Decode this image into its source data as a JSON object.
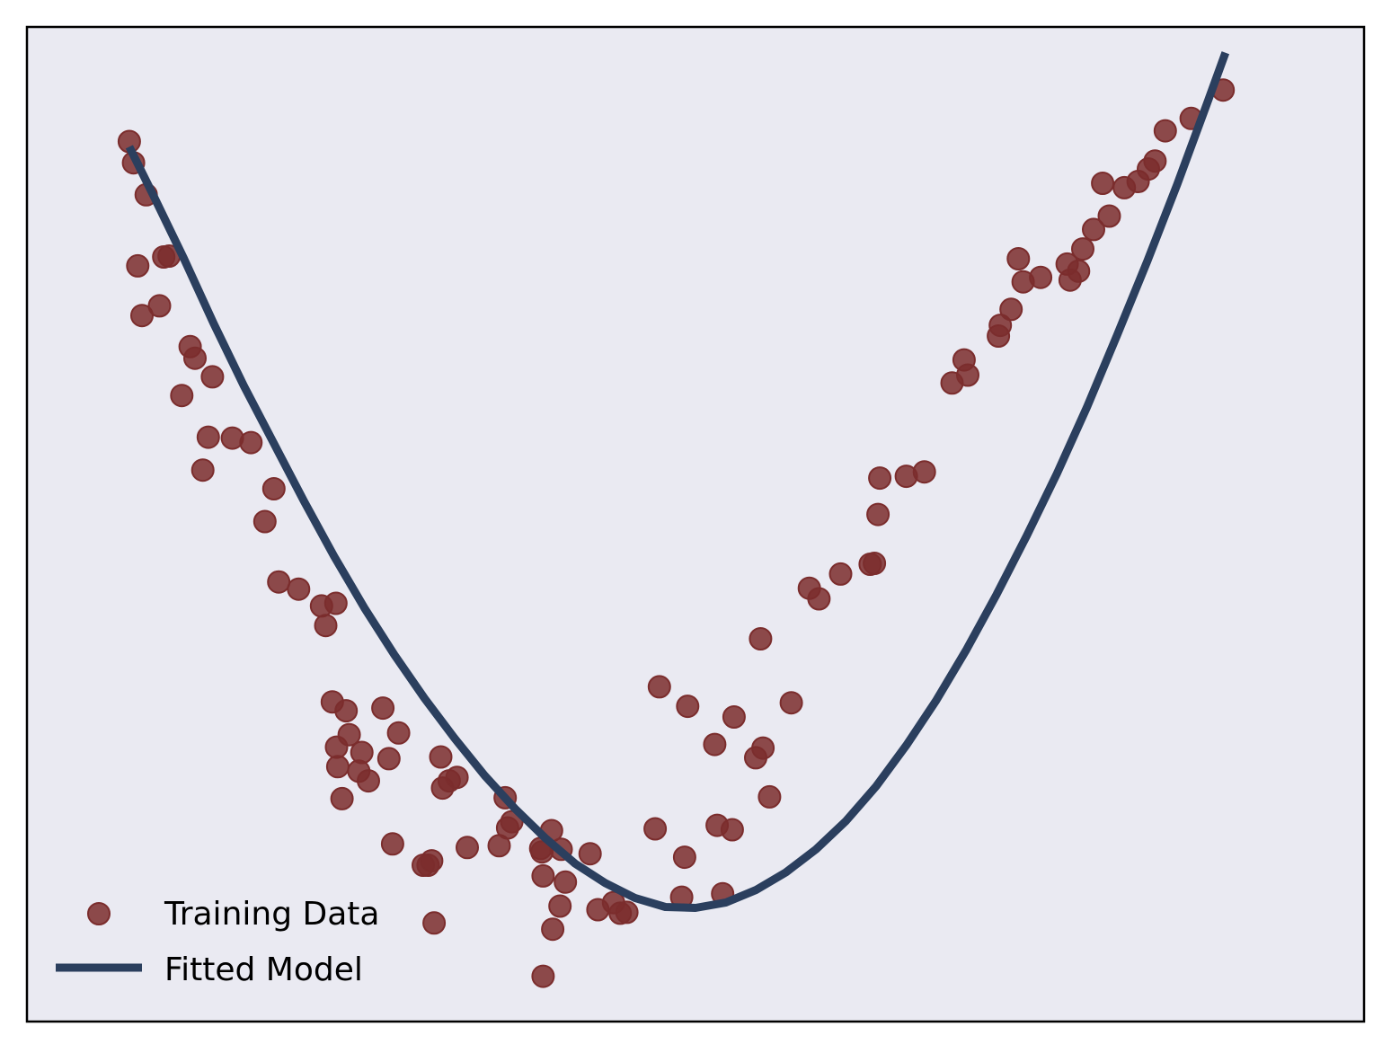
{
  "chart_data": {
    "type": "scatter",
    "title": "",
    "xlabel": "",
    "ylabel": "",
    "x_range": [
      -1.11,
      1.11
    ],
    "y_range": [
      -0.1,
      1.02
    ],
    "grid": false,
    "axis_ticks": false,
    "legend_position": "lower-left",
    "series": [
      {
        "name": "Training Data",
        "kind": "scatter",
        "color": "#7b2d2d",
        "points": [
          [
            -0.94,
            0.891
          ],
          [
            -0.933,
            0.867
          ],
          [
            -0.926,
            0.751
          ],
          [
            -0.919,
            0.695
          ],
          [
            -0.912,
            0.831
          ],
          [
            -0.89,
            0.706
          ],
          [
            -0.883,
            0.761
          ],
          [
            -0.874,
            0.762
          ],
          [
            -0.853,
            0.605
          ],
          [
            -0.839,
            0.66
          ],
          [
            -0.831,
            0.647
          ],
          [
            -0.818,
            0.521
          ],
          [
            -0.809,
            0.558
          ],
          [
            -0.802,
            0.626
          ],
          [
            -0.769,
            0.557
          ],
          [
            -0.738,
            0.552
          ],
          [
            -0.715,
            0.463
          ],
          [
            -0.7,
            0.5
          ],
          [
            -0.692,
            0.395
          ],
          [
            -0.659,
            0.387
          ],
          [
            -0.621,
            0.368
          ],
          [
            -0.614,
            0.346
          ],
          [
            -0.603,
            0.26
          ],
          [
            -0.597,
            0.371
          ],
          [
            -0.596,
            0.209
          ],
          [
            -0.594,
            0.187
          ],
          [
            -0.587,
            0.151
          ],
          [
            -0.58,
            0.25
          ],
          [
            -0.575,
            0.223
          ],
          [
            -0.559,
            0.182
          ],
          [
            -0.554,
            0.203
          ],
          [
            -0.543,
            0.171
          ],
          [
            -0.519,
            0.253
          ],
          [
            -0.509,
            0.196
          ],
          [
            -0.503,
            0.1
          ],
          [
            -0.493,
            0.225
          ],
          [
            -0.452,
            0.076
          ],
          [
            -0.444,
            0.076
          ],
          [
            -0.438,
            0.081
          ],
          [
            -0.434,
            0.011
          ],
          [
            -0.423,
            0.198
          ],
          [
            -0.42,
            0.163
          ],
          [
            -0.409,
            0.171
          ],
          [
            -0.396,
            0.175
          ],
          [
            -0.379,
            0.096
          ],
          [
            -0.326,
            0.098
          ],
          [
            -0.316,
            0.152
          ],
          [
            -0.312,
            0.118
          ],
          [
            -0.305,
            0.125
          ],
          [
            -0.257,
            0.095
          ],
          [
            -0.255,
            0.091
          ],
          [
            -0.253,
            0.064
          ],
          [
            -0.253,
            -0.049
          ],
          [
            -0.239,
            0.115
          ],
          [
            -0.237,
            0.004
          ],
          [
            -0.225,
            0.03
          ],
          [
            -0.223,
            0.094
          ],
          [
            -0.216,
            0.057
          ],
          [
            -0.175,
            0.089
          ],
          [
            -0.162,
            0.026
          ],
          [
            -0.136,
            0.034
          ],
          [
            -0.125,
            0.022
          ],
          [
            -0.114,
            0.023
          ],
          [
            -0.067,
            0.117
          ],
          [
            -0.06,
            0.277
          ],
          [
            -0.023,
            0.04
          ],
          [
            -0.018,
            0.085
          ],
          [
            -0.013,
            0.255
          ],
          [
            0.032,
            0.212
          ],
          [
            0.036,
            0.121
          ],
          [
            0.045,
            0.044
          ],
          [
            0.061,
            0.116
          ],
          [
            0.064,
            0.243
          ],
          [
            0.1,
            0.197
          ],
          [
            0.108,
            0.331
          ],
          [
            0.112,
            0.208
          ],
          [
            0.123,
            0.153
          ],
          [
            0.159,
            0.259
          ],
          [
            0.189,
            0.388
          ],
          [
            0.205,
            0.376
          ],
          [
            0.241,
            0.404
          ],
          [
            0.29,
            0.415
          ],
          [
            0.297,
            0.416
          ],
          [
            0.303,
            0.471
          ],
          [
            0.306,
            0.512
          ],
          [
            0.35,
            0.514
          ],
          [
            0.38,
            0.519
          ],
          [
            0.426,
            0.619
          ],
          [
            0.446,
            0.645
          ],
          [
            0.452,
            0.628
          ],
          [
            0.503,
            0.672
          ],
          [
            0.506,
            0.684
          ],
          [
            0.524,
            0.702
          ],
          [
            0.536,
            0.759
          ],
          [
            0.544,
            0.733
          ],
          [
            0.573,
            0.738
          ],
          [
            0.617,
            0.753
          ],
          [
            0.622,
            0.735
          ],
          [
            0.636,
            0.745
          ],
          [
            0.643,
            0.77
          ],
          [
            0.661,
            0.792
          ],
          [
            0.676,
            0.844
          ],
          [
            0.687,
            0.807
          ],
          [
            0.712,
            0.839
          ],
          [
            0.735,
            0.846
          ],
          [
            0.752,
            0.86
          ],
          [
            0.763,
            0.869
          ],
          [
            0.78,
            0.903
          ],
          [
            0.823,
            0.917
          ],
          [
            0.876,
            0.949
          ]
        ]
      },
      {
        "name": "Fitted Model",
        "kind": "line",
        "color": "#2b3f5e",
        "points": [
          [
            -0.94,
            0.885
          ],
          [
            -0.9,
            0.83
          ],
          [
            -0.85,
            0.76
          ],
          [
            -0.8,
            0.686
          ],
          [
            -0.75,
            0.616
          ],
          [
            -0.7,
            0.551
          ],
          [
            -0.65,
            0.486
          ],
          [
            -0.6,
            0.424
          ],
          [
            -0.55,
            0.366
          ],
          [
            -0.5,
            0.313
          ],
          [
            -0.45,
            0.264
          ],
          [
            -0.4,
            0.219
          ],
          [
            -0.35,
            0.177
          ],
          [
            -0.3,
            0.14
          ],
          [
            -0.25,
            0.107
          ],
          [
            -0.2,
            0.078
          ],
          [
            -0.15,
            0.056
          ],
          [
            -0.1,
            0.039
          ],
          [
            -0.05,
            0.029
          ],
          [
            0.0,
            0.028
          ],
          [
            0.05,
            0.034
          ],
          [
            0.1,
            0.048
          ],
          [
            0.15,
            0.068
          ],
          [
            0.2,
            0.094
          ],
          [
            0.25,
            0.126
          ],
          [
            0.3,
            0.165
          ],
          [
            0.35,
            0.211
          ],
          [
            0.4,
            0.262
          ],
          [
            0.45,
            0.319
          ],
          [
            0.5,
            0.381
          ],
          [
            0.55,
            0.447
          ],
          [
            0.6,
            0.517
          ],
          [
            0.65,
            0.592
          ],
          [
            0.7,
            0.673
          ],
          [
            0.75,
            0.756
          ],
          [
            0.8,
            0.843
          ],
          [
            0.85,
            0.935
          ],
          [
            0.88,
            0.991
          ]
        ]
      }
    ]
  }
}
